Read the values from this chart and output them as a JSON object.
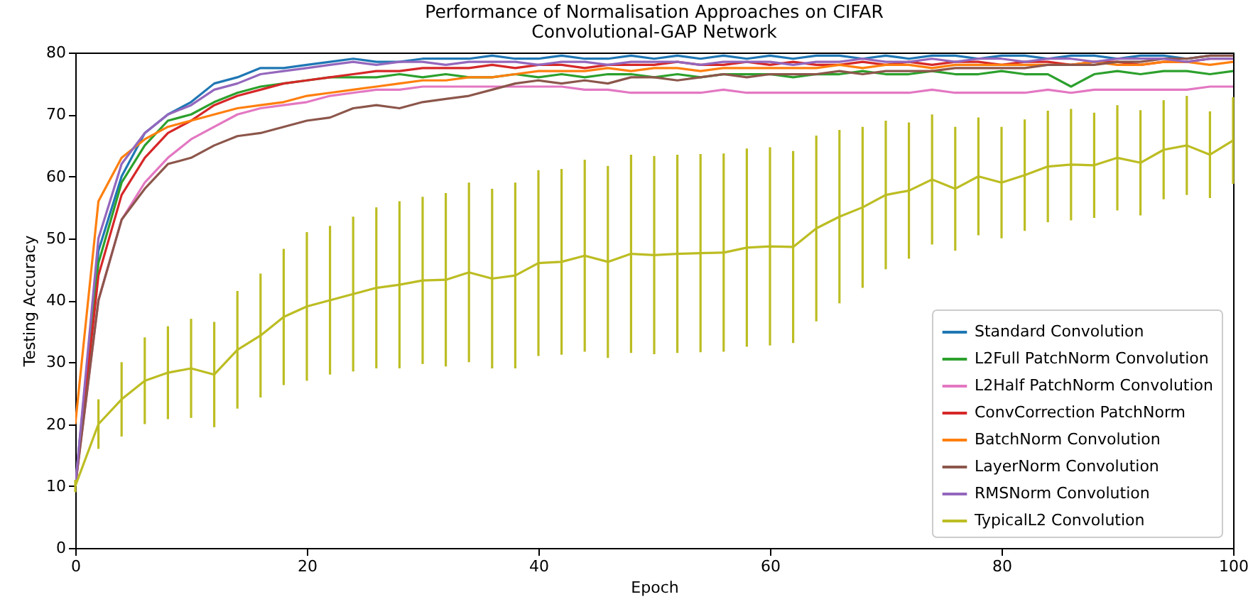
{
  "chart_data": {
    "type": "line",
    "title": "Performance of Normalisation Approaches on CIFAR\nConvolutional-GAP Network",
    "xlabel": "Epoch",
    "ylabel": "Testing Accuracy",
    "x": [
      0,
      2,
      4,
      6,
      8,
      10,
      12,
      14,
      16,
      18,
      20,
      22,
      24,
      26,
      28,
      30,
      32,
      34,
      36,
      38,
      40,
      42,
      44,
      46,
      48,
      50,
      52,
      54,
      56,
      58,
      60,
      62,
      64,
      66,
      68,
      70,
      72,
      74,
      76,
      78,
      80,
      82,
      84,
      86,
      88,
      90,
      92,
      94,
      96,
      98,
      100
    ],
    "xlim": [
      0,
      100
    ],
    "xticks": [
      0,
      20,
      40,
      60,
      80,
      100
    ],
    "ylim": [
      0,
      80
    ],
    "yticks": [
      0,
      10,
      20,
      30,
      40,
      50,
      60,
      70,
      80
    ],
    "grid": false,
    "legend": "bottom right",
    "line_style": "solid",
    "series": [
      {
        "name": "Standard Convolution",
        "color": "#1f77b4",
        "values": [
          10,
          48,
          60,
          67,
          70,
          72,
          75,
          76,
          77.5,
          77.5,
          78,
          78.5,
          79,
          78.5,
          78.5,
          79,
          79,
          79,
          79.5,
          79,
          79,
          79.5,
          79,
          79,
          79.5,
          79,
          79.5,
          79,
          79.5,
          79,
          79.5,
          79,
          79.5,
          79.5,
          79,
          79.5,
          79,
          79.5,
          79.5,
          79,
          79.5,
          79.5,
          79,
          79.5,
          79.5,
          79,
          79.5,
          79.5,
          79,
          79.5,
          79.5
        ]
      },
      {
        "name": "L2Full PatchNorm Convolution",
        "color": "#2ca02c",
        "values": [
          10,
          46,
          59,
          65,
          69,
          70,
          72,
          73.5,
          74.5,
          75,
          75.5,
          76,
          76,
          76,
          76.5,
          76,
          76.5,
          76,
          76,
          76.5,
          76,
          76.5,
          76,
          76.5,
          76.5,
          76,
          76.5,
          76,
          76.5,
          76.5,
          76.5,
          76,
          76.5,
          76.5,
          77,
          76.5,
          76.5,
          77,
          76.5,
          76.5,
          77,
          76.5,
          76.5,
          74.5,
          76.5,
          77,
          76.5,
          77,
          77,
          76.5,
          77
        ]
      },
      {
        "name": "L2Half PatchNorm Convolution",
        "color": "#e377c2",
        "values": [
          10,
          40,
          53,
          59,
          63,
          66,
          68,
          70,
          71,
          71.5,
          72,
          73,
          73.5,
          74,
          74,
          74.5,
          74.5,
          74.5,
          74.5,
          74.5,
          74.5,
          74.5,
          74,
          74,
          73.5,
          73.5,
          73.5,
          73.5,
          74,
          73.5,
          73.5,
          73.5,
          73.5,
          73.5,
          73.5,
          73.5,
          73.5,
          74,
          73.5,
          73.5,
          73.5,
          73.5,
          74,
          73.5,
          74,
          74,
          74,
          74,
          74,
          74.5,
          74.5
        ]
      },
      {
        "name": "ConvCorrection PatchNorm",
        "color": "#d62728",
        "values": [
          10,
          44,
          57,
          63,
          67,
          69,
          71.5,
          73,
          74,
          75,
          75.5,
          76,
          76.5,
          77,
          77,
          77.5,
          77.5,
          77.5,
          78,
          77.5,
          78,
          78,
          77.5,
          78,
          78,
          78,
          78.5,
          78,
          78,
          78.5,
          78,
          78.5,
          78,
          78,
          78.5,
          78,
          78.5,
          78,
          78.5,
          78.5,
          78,
          78.5,
          78.5,
          78,
          78.5,
          78.5,
          78,
          78.5,
          78.5,
          79,
          79
        ]
      },
      {
        "name": "BatchNorm Convolution",
        "color": "#ff7f0e",
        "values": [
          20,
          56,
          63,
          66,
          68,
          69,
          70,
          71,
          71.5,
          72,
          73,
          73.5,
          74,
          74.5,
          75,
          75.5,
          75.5,
          76,
          76,
          76.5,
          77,
          77,
          77,
          77.5,
          77,
          77.5,
          77.5,
          77,
          77.5,
          77.5,
          77.5,
          77.5,
          77.5,
          78,
          77.5,
          78,
          78,
          77.5,
          78,
          78,
          78,
          78,
          78,
          78,
          78.5,
          78,
          78,
          78.5,
          78.5,
          78,
          78.5
        ]
      },
      {
        "name": "LayerNorm Convolution",
        "color": "#8c564b",
        "values": [
          10,
          40,
          53,
          58,
          62,
          63,
          65,
          66.5,
          67,
          68,
          69,
          69.5,
          71,
          71.5,
          71,
          72,
          72.5,
          73,
          74,
          75,
          75.5,
          75,
          75.5,
          75,
          76,
          76,
          75.5,
          76,
          76.5,
          76,
          76.5,
          76.5,
          76.5,
          77,
          76.5,
          77,
          77,
          77,
          77.5,
          77.5,
          77.5,
          77.5,
          78,
          78,
          78,
          78.5,
          78.5,
          79,
          79,
          79.5,
          79.5
        ]
      },
      {
        "name": "RMSNorm Convolution",
        "color": "#9467bd",
        "values": [
          10,
          50,
          62,
          67,
          70,
          71.5,
          74,
          75,
          76.5,
          77,
          77.5,
          78,
          78.5,
          78,
          78.5,
          78.5,
          78,
          78.5,
          78.5,
          78.5,
          78,
          78.5,
          78.5,
          78,
          78.5,
          78.5,
          78.5,
          78,
          78.5,
          78.5,
          78.5,
          78,
          78.5,
          78.5,
          79,
          78.5,
          78.5,
          79,
          78.5,
          79,
          79,
          78.5,
          79,
          79,
          78.5,
          79,
          79,
          79,
          78.5,
          79,
          79
        ]
      },
      {
        "name": "TypicalL2 Convolution",
        "color": "#bcbd22",
        "values": [
          10,
          20,
          24,
          27,
          28.3,
          29,
          28,
          32,
          34.3,
          37.3,
          39,
          40,
          41,
          42,
          42.5,
          43.2,
          43.3,
          44.5,
          43.5,
          44,
          46,
          46.2,
          47.2,
          46.2,
          47.5,
          47.3,
          47.5,
          47.6,
          47.7,
          48.5,
          48.7,
          48.6,
          51.6,
          53.5,
          55,
          57,
          57.7,
          59.5,
          58,
          60,
          59,
          60.2,
          61.6,
          61.9,
          61.8,
          63,
          62.2,
          64.3,
          65,
          63.5,
          65.8
        ],
        "errors": [
          1,
          4,
          6,
          7,
          7.5,
          8,
          8.5,
          9.5,
          10,
          11,
          12,
          12,
          12.5,
          13,
          13.5,
          13.5,
          14,
          14.5,
          14.5,
          15,
          15,
          15,
          15.5,
          15.5,
          16,
          16,
          16,
          16,
          16,
          16,
          16,
          15.5,
          15,
          14,
          13,
          12,
          11,
          10.5,
          10,
          9.5,
          9,
          9,
          9,
          9,
          8.5,
          8.5,
          8.5,
          8,
          8,
          7,
          7
        ]
      }
    ]
  }
}
